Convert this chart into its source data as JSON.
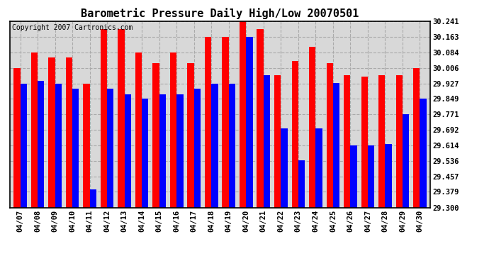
{
  "title": "Barometric Pressure Daily High/Low 20070501",
  "copyright": "Copyright 2007 Cartronics.com",
  "dates": [
    "04/07",
    "04/08",
    "04/09",
    "04/10",
    "04/11",
    "04/12",
    "04/13",
    "04/14",
    "04/15",
    "04/16",
    "04/17",
    "04/18",
    "04/19",
    "04/20",
    "04/21",
    "04/22",
    "04/23",
    "04/24",
    "04/25",
    "04/26",
    "04/27",
    "04/28",
    "04/29",
    "04/30"
  ],
  "highs": [
    30.006,
    30.084,
    30.057,
    30.057,
    29.927,
    30.2,
    30.2,
    30.084,
    30.03,
    30.084,
    30.03,
    30.163,
    30.163,
    30.241,
    30.2,
    29.97,
    30.04,
    30.113,
    30.03,
    29.97,
    29.96,
    29.97,
    29.97,
    30.006
  ],
  "lows": [
    29.927,
    29.94,
    29.927,
    29.9,
    29.39,
    29.9,
    29.87,
    29.849,
    29.87,
    29.87,
    29.9,
    29.927,
    29.927,
    30.163,
    29.97,
    29.7,
    29.54,
    29.7,
    29.93,
    29.614,
    29.614,
    29.62,
    29.771,
    29.849
  ],
  "ymin": 29.3,
  "ymax": 30.241,
  "yticks": [
    29.3,
    29.379,
    29.457,
    29.536,
    29.614,
    29.692,
    29.771,
    29.849,
    29.927,
    30.006,
    30.084,
    30.163,
    30.241
  ],
  "ytick_labels": [
    "29.300",
    "29.379",
    "29.457",
    "29.536",
    "29.614",
    "29.692",
    "29.771",
    "29.849",
    "29.927",
    "30.006",
    "30.084",
    "30.163",
    "30.241"
  ],
  "bar_width": 0.38,
  "high_color": "#ff0000",
  "low_color": "#0000ff",
  "bg_color": "#ffffff",
  "plot_bg_color": "#d8d8d8",
  "grid_color": "#aaaaaa",
  "title_fontsize": 11,
  "tick_fontsize": 7.5,
  "copyright_fontsize": 7
}
